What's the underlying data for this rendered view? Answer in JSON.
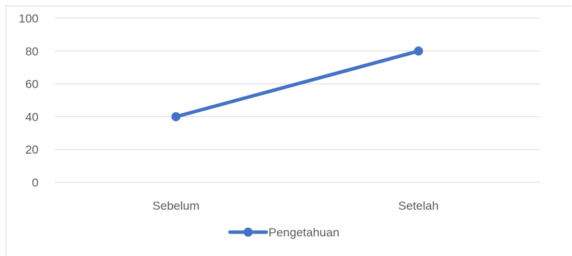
{
  "chart_data": {
    "type": "line",
    "categories": [
      "Sebelum",
      "Setelah"
    ],
    "series": [
      {
        "name": "Pengetahuan",
        "values": [
          40,
          80
        ],
        "color": "#4472C4",
        "marker": "circle"
      }
    ],
    "ylim": [
      0,
      100
    ],
    "yticks": [
      0,
      20,
      40,
      60,
      80,
      100
    ],
    "grid": true,
    "legend_position": "bottom"
  }
}
